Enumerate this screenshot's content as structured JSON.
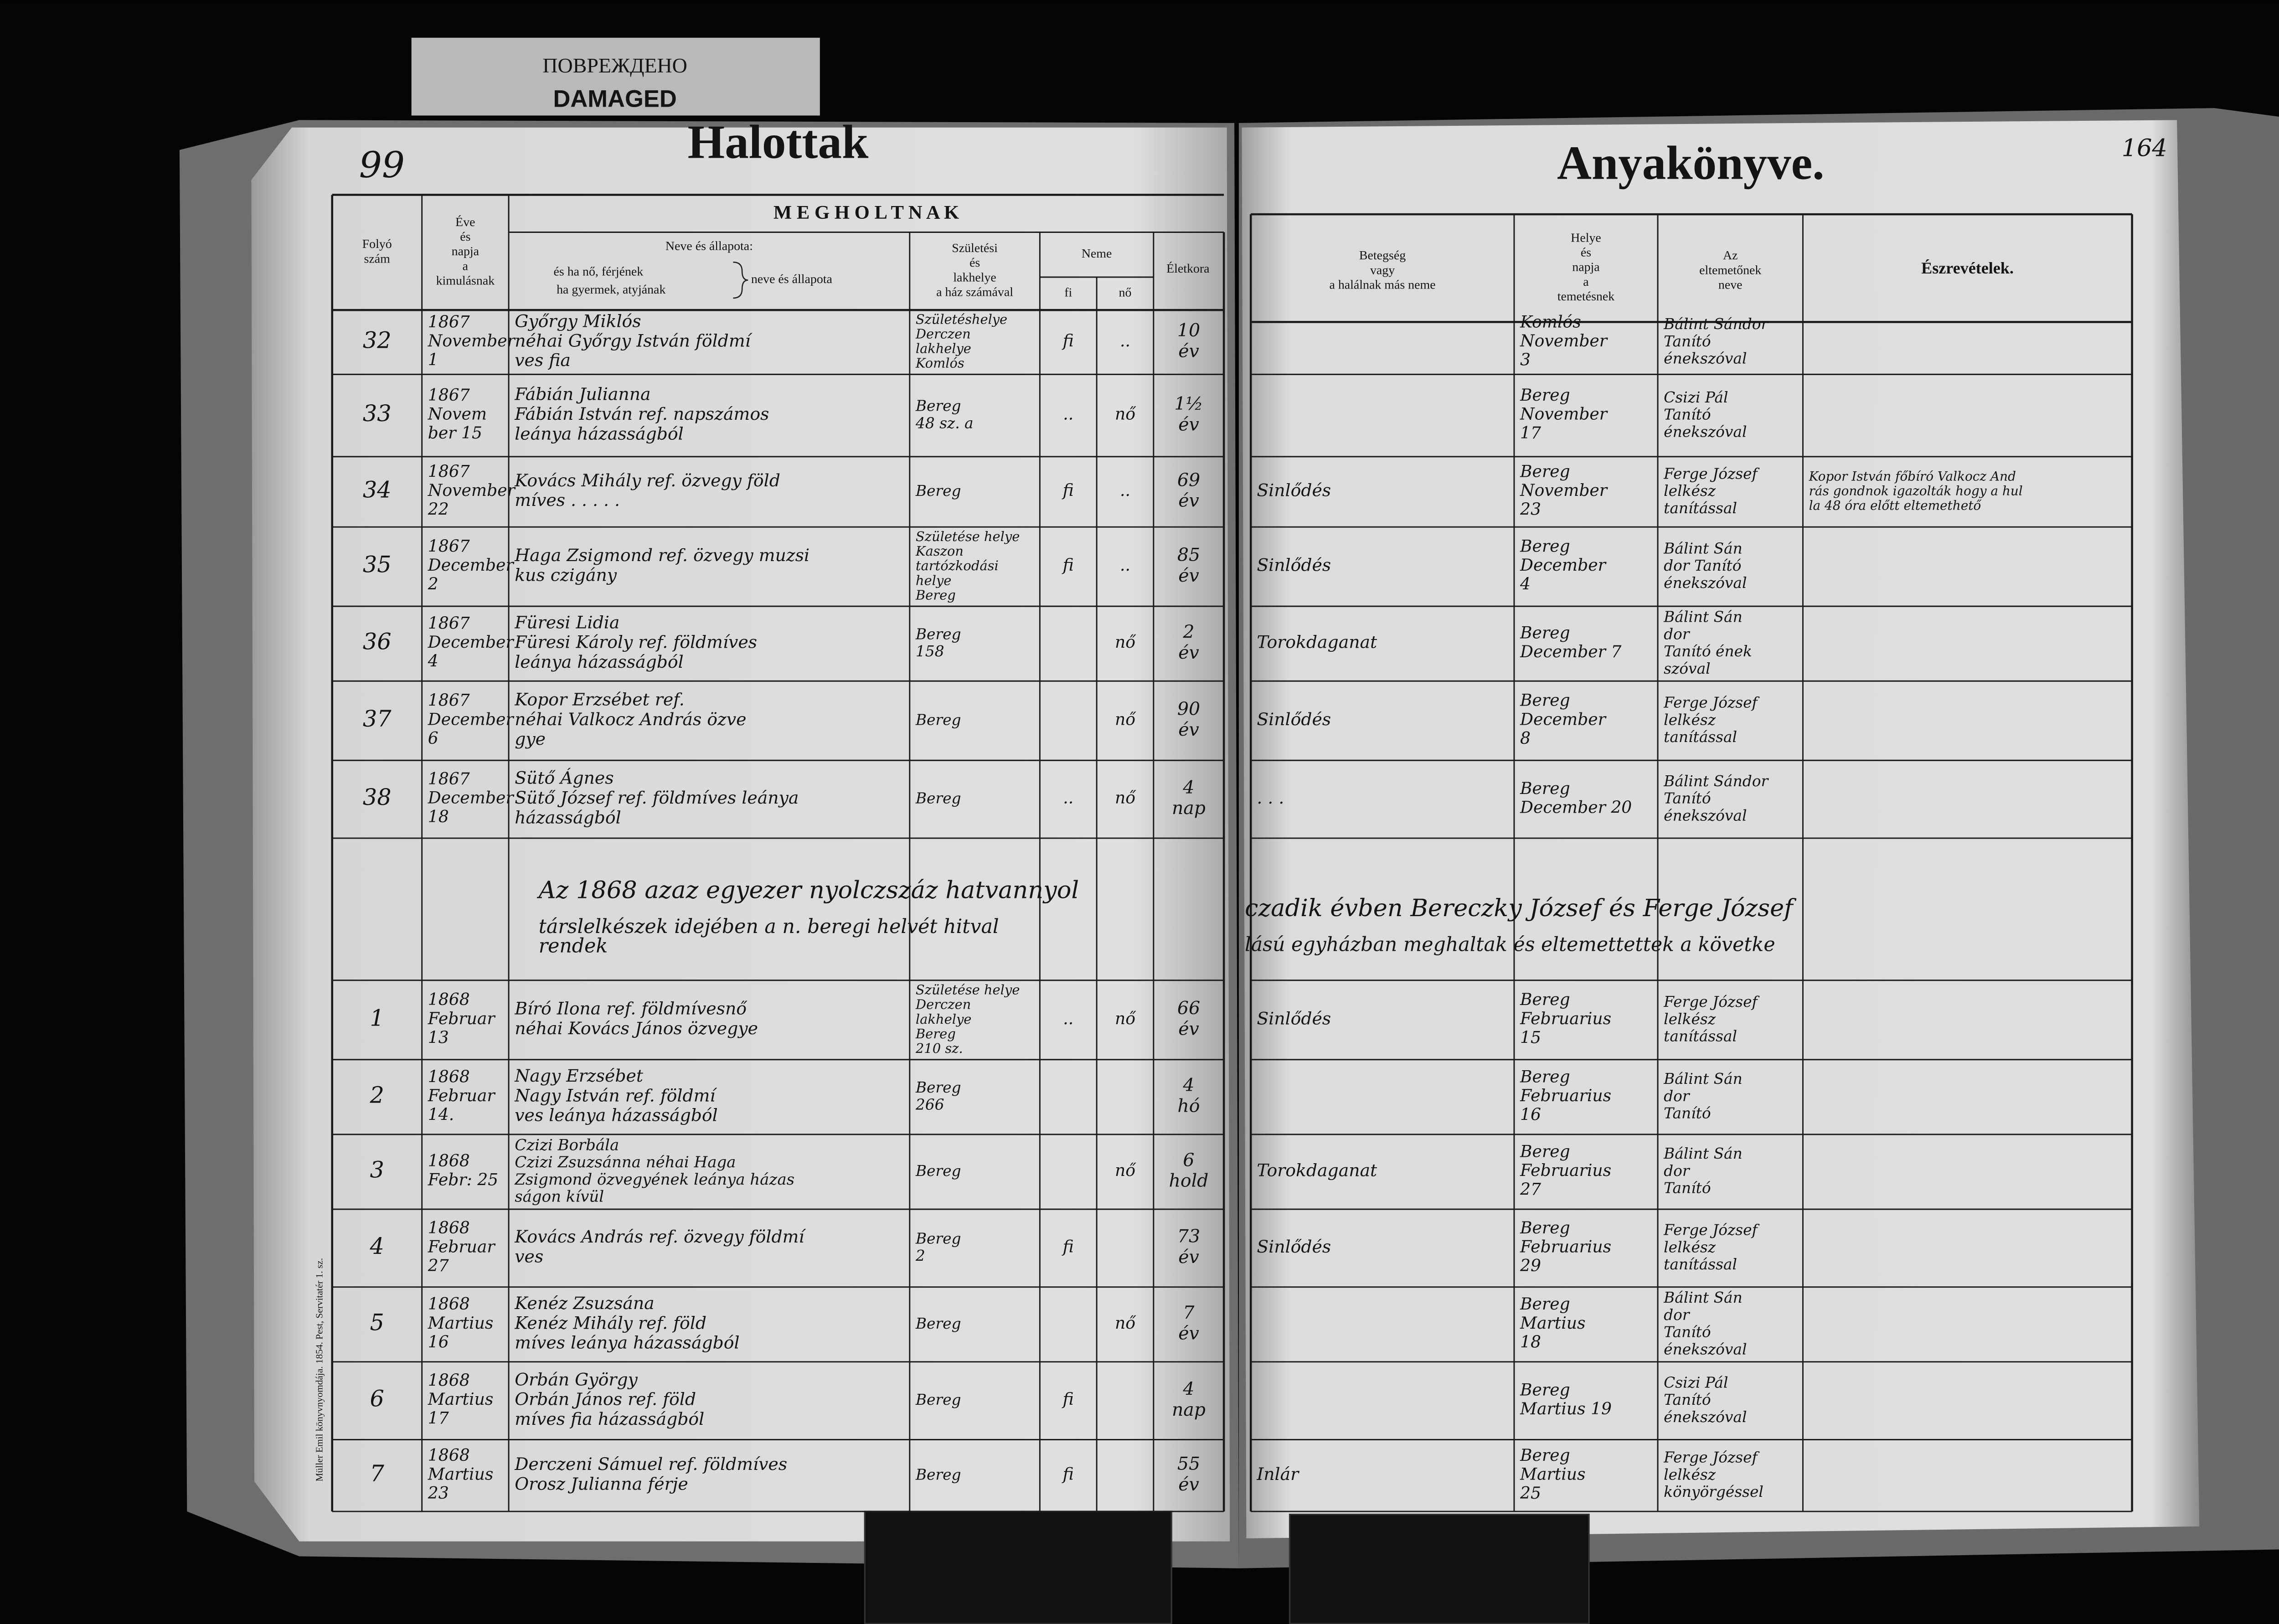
{
  "header": {
    "damaged_ru": "ПОВРЕЖДЕНО",
    "damaged_en": "DAMAGED",
    "left_title": "Halottak",
    "right_title": "Anyakönyve.",
    "page_number_left": "99",
    "page_number_right": "164",
    "printer": "Müller Emil könyvnyomdája. 1854. Pest, Servitatér 1. sz."
  },
  "columns": {
    "number": [
      "Folyó",
      "szám"
    ],
    "date": [
      "Éve",
      "és",
      "napja",
      "a",
      "kimulásnak"
    ],
    "group": "M E G H O L T N A K",
    "name": [
      "Neve és állapota:",
      "és ha nő, férjének",
      "ha gyermek, atyjának",
      "neve és állapota"
    ],
    "birthplace": [
      "Születési",
      "és",
      "lakhelye",
      "a ház számával"
    ],
    "sex": "Neme",
    "male": "fi",
    "female": "nő",
    "age": "Életkora",
    "disease": [
      "Betegség",
      "vagy",
      "a halálnak más neme"
    ],
    "burial": [
      "Helye",
      "és",
      "napja",
      "a",
      "temetésnek"
    ],
    "officiant": [
      "Az",
      "eltemetőnek",
      "neve"
    ],
    "remarks": "Észrevételek."
  },
  "rows": [
    {
      "no": "32",
      "date": [
        "1867",
        "November",
        "1"
      ],
      "name": [
        "Győrgy Miklós",
        "néhai Győrgy István földmí",
        "ves fia"
      ],
      "birthplace": [
        "Születéshelye",
        "Derczen",
        "lakhelye",
        "Komlós"
      ],
      "male": "fi",
      "female": "..",
      "age": [
        "10",
        "év"
      ],
      "burial": [
        "Komlós",
        "November",
        "3"
      ],
      "officiant": [
        "Bálint Sándor",
        "Tanító",
        "énekszóval"
      ]
    },
    {
      "no": "33",
      "date": [
        "1867",
        "Novem",
        "ber 15"
      ],
      "name": [
        "Fábián Julianna",
        "Fábián István ref. napszámos",
        "leánya házasságból"
      ],
      "birthplace": [
        "Bereg",
        "48 sz. a"
      ],
      "male": "..",
      "female": "nő",
      "age": [
        "1½",
        "év"
      ],
      "burial": [
        "Bereg",
        "November",
        "17"
      ],
      "officiant": [
        "Csizi Pál",
        "Tanító",
        "énekszóval"
      ]
    },
    {
      "no": "34",
      "date": [
        "1867",
        "November",
        "22"
      ],
      "name": [
        "Kovács Mihály ref. özvegy föld",
        "míves . . . . ."
      ],
      "birthplace": [
        "Bereg"
      ],
      "male": "fi",
      "female": "..",
      "age": [
        "69",
        "év"
      ],
      "disease": [
        "Sinlődés"
      ],
      "burial": [
        "Bereg",
        "November",
        "23"
      ],
      "officiant": [
        "Ferge József",
        "lelkész",
        "tanítással"
      ],
      "remarks": [
        "Kopor István főbíró Valkocz And",
        "rás gondnok igazolták hogy a hul",
        "la 48 óra előtt eltemethető"
      ]
    },
    {
      "no": "35",
      "date": [
        "1867",
        "December",
        "2"
      ],
      "name": [
        "Haga Zsigmond ref. özvegy muzsi",
        "kus czigány"
      ],
      "birthplace": [
        "Születése helye",
        "Kaszon",
        "tartózkodási",
        "helye",
        "Bereg"
      ],
      "male": "fi",
      "female": "..",
      "age": [
        "85",
        "év"
      ],
      "disease": [
        "Sinlődés"
      ],
      "burial": [
        "Bereg",
        "December",
        "4"
      ],
      "officiant": [
        "Bálint Sán",
        "dor Tanító",
        "énekszóval"
      ]
    },
    {
      "no": "36",
      "date": [
        "1867",
        "December",
        "4"
      ],
      "name": [
        "Füresi Lidia",
        "Füresi Károly ref. földmíves",
        "leánya házasságból"
      ],
      "birthplace": [
        "Bereg",
        "158"
      ],
      "female": "nő",
      "age": [
        "2",
        "év"
      ],
      "disease": [
        "Torokdaganat"
      ],
      "burial": [
        "Bereg",
        "December 7"
      ],
      "officiant": [
        "Bálint Sán",
        "dor",
        "Tanító ének",
        "szóval"
      ]
    },
    {
      "no": "37",
      "date": [
        "1867",
        "December",
        "6"
      ],
      "name": [
        "Kopor Erzsébet ref.",
        "néhai Valkocz András özve",
        "gye"
      ],
      "birthplace": [
        "Bereg"
      ],
      "female": "nő",
      "age": [
        "90",
        "év"
      ],
      "disease": [
        "Sinlődés"
      ],
      "burial": [
        "Bereg",
        "December",
        "8"
      ],
      "officiant": [
        "Ferge József",
        "lelkész",
        "tanítással"
      ]
    },
    {
      "no": "38",
      "date": [
        "1867",
        "December",
        "18"
      ],
      "name": [
        "Sütő Ágnes",
        "Sütő József ref. földmíves leánya",
        "házasságból"
      ],
      "birthplace": [
        "Bereg"
      ],
      "male": "..",
      "female": "nő",
      "age": [
        "4",
        "nap"
      ],
      "disease": [
        ". . ."
      ],
      "burial": [
        "Bereg",
        "December 20"
      ],
      "officiant": [
        "Bálint Sándor",
        "Tanító",
        "énekszóval"
      ]
    },
    {
      "no": "1",
      "date": [
        "1868",
        "Februar",
        "13"
      ],
      "name": [
        "Bíró Ilona ref. földmívesnő",
        "néhai Kovács János özvegye"
      ],
      "birthplace": [
        "Születése helye",
        "Derczen",
        "lakhelye",
        "Bereg",
        "210 sz."
      ],
      "male": "..",
      "female": "nő",
      "age": [
        "66",
        "év"
      ],
      "disease": [
        "Sinlődés"
      ],
      "burial": [
        "Bereg",
        "Februarius",
        "15"
      ],
      "officiant": [
        "Ferge József",
        "lelkész",
        "tanítással"
      ]
    },
    {
      "no": "2",
      "date": [
        "1868",
        "Februar",
        "14."
      ],
      "name": [
        "Nagy Erzsébet",
        "Nagy István ref. földmí",
        "ves leánya házasságból"
      ],
      "birthplace": [
        "Bereg",
        "266"
      ],
      "age": [
        "4",
        "hó"
      ],
      "burial": [
        "Bereg",
        "Februarius",
        "16"
      ],
      "officiant": [
        "Bálint Sán",
        "dor",
        "Tanító"
      ]
    },
    {
      "no": "3",
      "date": [
        "1868",
        "Febr: 25"
      ],
      "name": [
        "Czizi Borbála",
        "Czizi Zsuzsánna néhai Haga",
        "Zsigmond özvegyének leánya házas",
        "ságon kívül"
      ],
      "birthplace": [
        "Bereg"
      ],
      "female": "nő",
      "age": [
        "6",
        "hold"
      ],
      "disease": [
        "Torokdaganat"
      ],
      "burial": [
        "Bereg",
        "Februarius",
        "27"
      ],
      "officiant": [
        "Bálint Sán",
        "dor",
        "Tanító"
      ]
    },
    {
      "no": "4",
      "date": [
        "1868",
        "Februar",
        "27"
      ],
      "name": [
        "Kovács András ref. özvegy földmí",
        "ves"
      ],
      "birthplace": [
        "Bereg",
        "2"
      ],
      "male": "fi",
      "age": [
        "73",
        "év"
      ],
      "disease": [
        "Sinlődés"
      ],
      "burial": [
        "Bereg",
        "Februarius",
        "29"
      ],
      "officiant": [
        "Ferge József",
        "lelkész",
        "tanítással"
      ]
    },
    {
      "no": "5",
      "date": [
        "1868",
        "Martius",
        "16"
      ],
      "name": [
        "Kenéz Zsuzsána",
        "Kenéz Mihály ref. föld",
        "míves leánya házasságból"
      ],
      "birthplace": [
        "Bereg"
      ],
      "female": "nő",
      "age": [
        "7",
        "év"
      ],
      "burial": [
        "Bereg",
        "Martius",
        "18"
      ],
      "officiant": [
        "Bálint Sán",
        "dor",
        "Tanító",
        "énekszóval"
      ]
    },
    {
      "no": "6",
      "date": [
        "1868",
        "Martius",
        "17"
      ],
      "name": [
        "Orbán György",
        "Orbán János ref. föld",
        "míves fia házasságból"
      ],
      "birthplace": [
        "Bereg"
      ],
      "male": "fi",
      "age": [
        "4",
        "nap"
      ],
      "burial": [
        "Bereg",
        "Martius 19"
      ],
      "officiant": [
        "Csizi Pál",
        "Tanító",
        "énekszóval"
      ]
    },
    {
      "no": "7",
      "date": [
        "1868",
        "Martius",
        "23"
      ],
      "name": [
        "Derczeni Sámuel ref. földmíves",
        "Orosz Julianna férje"
      ],
      "birthplace": [
        "Bereg"
      ],
      "male": "fi",
      "age": [
        "55",
        "év"
      ],
      "disease": [
        "Inlár"
      ],
      "burial": [
        "Bereg",
        "Martius",
        "25"
      ],
      "officiant": [
        "Ferge József",
        "lelkész",
        "könyörgéssel"
      ]
    }
  ],
  "note": {
    "left": [
      "Az 1868 azaz egyezer nyolczszáz hatvannyol",
      "társlelkészek idejében a n. beregi helvét hitval",
      "rendek"
    ],
    "right": [
      "czadik évben Bereczky József és Ferge József",
      "lású egyházban meghaltak és eltemettettek a követke"
    ]
  }
}
